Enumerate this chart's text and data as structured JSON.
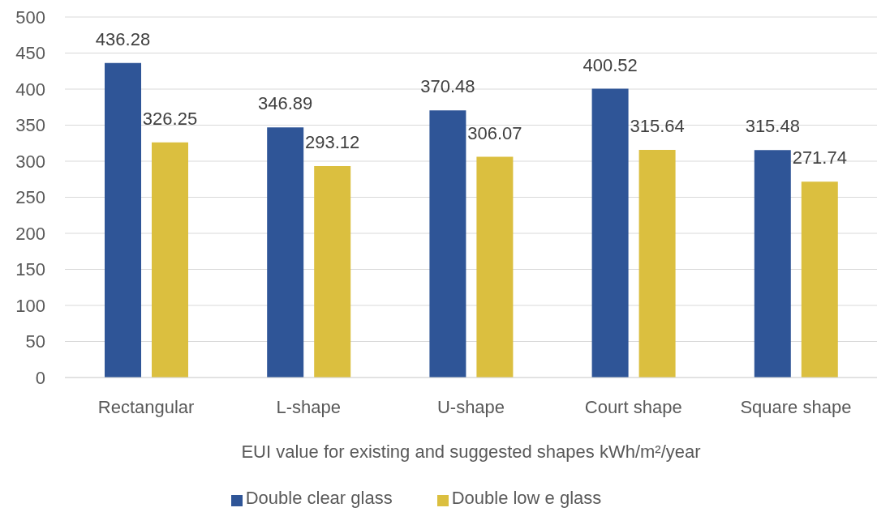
{
  "chart_data": {
    "type": "bar",
    "categories": [
      "Rectangular",
      "L-shape",
      "U-shape",
      "Court shape",
      "Square shape"
    ],
    "series": [
      {
        "name": "Double clear glass",
        "color": "#2f5597",
        "values": [
          436.28,
          346.89,
          370.48,
          400.52,
          315.48
        ]
      },
      {
        "name": "Double low e glass",
        "color": "#dbbf3f",
        "values": [
          326.25,
          293.12,
          306.07,
          315.64,
          271.74
        ]
      }
    ],
    "xlabel": "EUI value for existing and suggested shapes kWh/m²/year",
    "ylim": [
      0,
      500
    ],
    "yticks": [
      0,
      50,
      100,
      150,
      200,
      250,
      300,
      350,
      400,
      450,
      500
    ],
    "grid": "y",
    "legend": "bottom",
    "data_labels": true
  }
}
